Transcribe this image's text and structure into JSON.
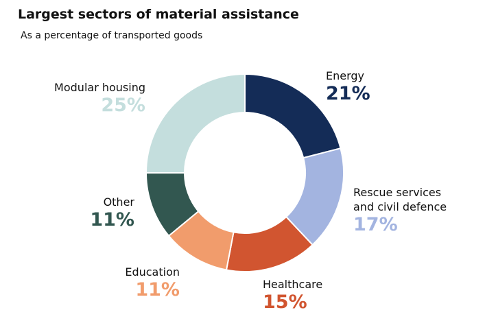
{
  "chart_data": {
    "type": "donut",
    "title": "Largest sectors of material assistance",
    "subtitle": "As a percentage of transported goods",
    "categories": [
      "Energy",
      "Rescue services and civil defence",
      "Healthcare",
      "Education",
      "Other",
      "Modular housing"
    ],
    "values": [
      21,
      17,
      15,
      11,
      11,
      25
    ],
    "value_labels": [
      "21%",
      "17%",
      "15%",
      "11%",
      "11%",
      "25%"
    ],
    "colors": [
      "#142c57",
      "#a3b4e0",
      "#d15530",
      "#f19c6c",
      "#325750",
      "#c4dedd"
    ]
  }
}
